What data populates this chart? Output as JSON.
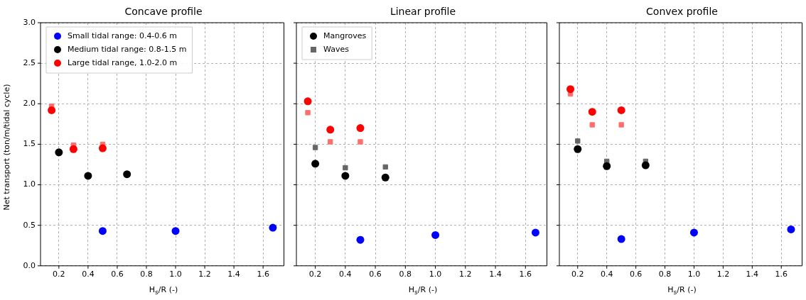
{
  "chart_data": [
    {
      "type": "scatter",
      "title": "Concave profile",
      "xlabel": "H$_{s}$/R (-)",
      "ylabel": "Net transport (ton/m/tidal cycle)",
      "xlim": [
        0.074,
        1.743
      ],
      "ylim": [
        0,
        3
      ],
      "xticks": [
        {
          "value": 0.2,
          "label": "0.2"
        },
        {
          "value": 0.4,
          "label": "0.4"
        },
        {
          "value": 0.6,
          "label": "0.6"
        },
        {
          "value": 0.8,
          "label": "0.8"
        },
        {
          "value": 1,
          "label": "1.0"
        },
        {
          "value": 1.2,
          "label": "1.2"
        },
        {
          "value": 1.4,
          "label": "1.4"
        },
        {
          "value": 1.6,
          "label": "1.6"
        }
      ],
      "yticks": [
        {
          "value": 0,
          "label": "0.0"
        },
        {
          "value": 0.5,
          "label": "0.5"
        },
        {
          "value": 1,
          "label": "1.0"
        },
        {
          "value": 1.5,
          "label": "1.5"
        },
        {
          "value": 2,
          "label": "2.0"
        },
        {
          "value": 2.5,
          "label": "2.5"
        },
        {
          "value": 3,
          "label": "3.0"
        }
      ],
      "grid": true,
      "legend": "top left",
      "series": [
        {
          "name": "Small tidal range: 0.4-0.6 m",
          "color": "#0000ff",
          "marker": "circle",
          "x": [
            0.5,
            1.0,
            1.667
          ],
          "values": [
            0.43,
            0.43,
            0.47
          ]
        },
        {
          "name": "Medium tidal range: 0.8-1.5 m",
          "color": "#000000",
          "marker": "circle",
          "x": [
            0.2,
            0.4,
            0.667
          ],
          "values": [
            1.4,
            1.11,
            1.13
          ]
        },
        {
          "name": "Large tidal range, 1.0-2.0 m",
          "color": "#ff0000",
          "marker": "circle",
          "x": [
            0.15,
            0.3,
            0.5
          ],
          "values": [
            1.92,
            1.44,
            1.45
          ]
        },
        {
          "color": "#ff6e6e",
          "marker": "square",
          "x": [
            0.15,
            0.3,
            0.5
          ],
          "values": [
            1.97,
            1.49,
            1.5
          ]
        }
      ]
    },
    {
      "type": "scatter",
      "title": "Linear profile",
      "xlabel": "H$_{s}$/R (-)",
      "xlim": [
        0.074,
        1.743
      ],
      "ylim": [
        0,
        3
      ],
      "tick_labels": "x",
      "xticks": [
        {
          "value": 0.2,
          "label": "0.2"
        },
        {
          "value": 0.4,
          "label": "0.4"
        },
        {
          "value": 0.6,
          "label": "0.6"
        },
        {
          "value": 0.8,
          "label": "0.8"
        },
        {
          "value": 1,
          "label": "1.0"
        },
        {
          "value": 1.2,
          "label": "1.2"
        },
        {
          "value": 1.4,
          "label": "1.4"
        },
        {
          "value": 1.6,
          "label": "1.6"
        }
      ],
      "yticks": [
        {
          "value": 0,
          "label": null
        },
        {
          "value": 0.5,
          "label": null
        },
        {
          "value": 1,
          "label": null
        },
        {
          "value": 1.5,
          "label": null
        },
        {
          "value": 2,
          "label": null
        },
        {
          "value": 2.5,
          "label": null
        },
        {
          "value": 3,
          "label": null
        }
      ],
      "grid": true,
      "legend": "top left",
      "series": [
        {
          "name": "Mangroves",
          "color": "#000000",
          "marker": "circle",
          "x": [
            0.2,
            0.4,
            0.667
          ],
          "values": [
            1.26,
            1.11,
            1.09
          ]
        },
        {
          "name": "Waves",
          "color": "#666666",
          "marker": "square",
          "x": [
            0.2,
            0.4,
            0.667
          ],
          "values": [
            1.46,
            1.21,
            1.22
          ]
        },
        {
          "color": "#0000ff",
          "marker": "circle",
          "x": [
            0.5,
            1.0,
            1.667
          ],
          "values": [
            0.32,
            0.38,
            0.41
          ]
        },
        {
          "color": "#ff0000",
          "marker": "circle",
          "x": [
            0.15,
            0.3,
            0.5
          ],
          "values": [
            2.03,
            1.68,
            1.7
          ]
        },
        {
          "color": "#ff6e6e",
          "marker": "square",
          "x": [
            0.15,
            0.3,
            0.5
          ],
          "values": [
            1.89,
            1.53,
            1.53
          ]
        }
      ]
    },
    {
      "type": "scatter",
      "title": "Convex profile",
      "xlabel": "H$_{s}$/R (-)",
      "xlim": [
        0.074,
        1.743
      ],
      "ylim": [
        0,
        3
      ],
      "tick_labels": "x",
      "xticks": [
        {
          "value": 0.2,
          "label": "0.2"
        },
        {
          "value": 0.4,
          "label": "0.4"
        },
        {
          "value": 0.6,
          "label": "0.6"
        },
        {
          "value": 0.8,
          "label": "0.8"
        },
        {
          "value": 1,
          "label": "1.0"
        },
        {
          "value": 1.2,
          "label": "1.2"
        },
        {
          "value": 1.4,
          "label": "1.4"
        },
        {
          "value": 1.6,
          "label": "1.6"
        }
      ],
      "yticks": [
        {
          "value": 0,
          "label": null
        },
        {
          "value": 0.5,
          "label": null
        },
        {
          "value": 1,
          "label": null
        },
        {
          "value": 1.5,
          "label": null
        },
        {
          "value": 2,
          "label": null
        },
        {
          "value": 2.5,
          "label": null
        },
        {
          "value": 3,
          "label": null
        }
      ],
      "grid": true,
      "series": [
        {
          "color": "#0000ff",
          "marker": "circle",
          "x": [
            0.5,
            1.0,
            1.667
          ],
          "values": [
            0.33,
            0.41,
            0.45
          ]
        },
        {
          "color": "#000000",
          "marker": "circle",
          "x": [
            0.2,
            0.4,
            0.667
          ],
          "values": [
            1.44,
            1.23,
            1.24
          ]
        },
        {
          "color": "#ff0000",
          "marker": "circle",
          "x": [
            0.15,
            0.3,
            0.5
          ],
          "values": [
            2.18,
            1.9,
            1.92
          ]
        },
        {
          "color": "#ff6e6e",
          "marker": "square",
          "x": [
            0.15,
            0.3,
            0.5
          ],
          "values": [
            2.12,
            1.74,
            1.74
          ]
        },
        {
          "color": "#666666",
          "marker": "square",
          "x": [
            0.2,
            0.4,
            0.667
          ],
          "values": [
            1.54,
            1.29,
            1.29
          ]
        }
      ]
    }
  ]
}
